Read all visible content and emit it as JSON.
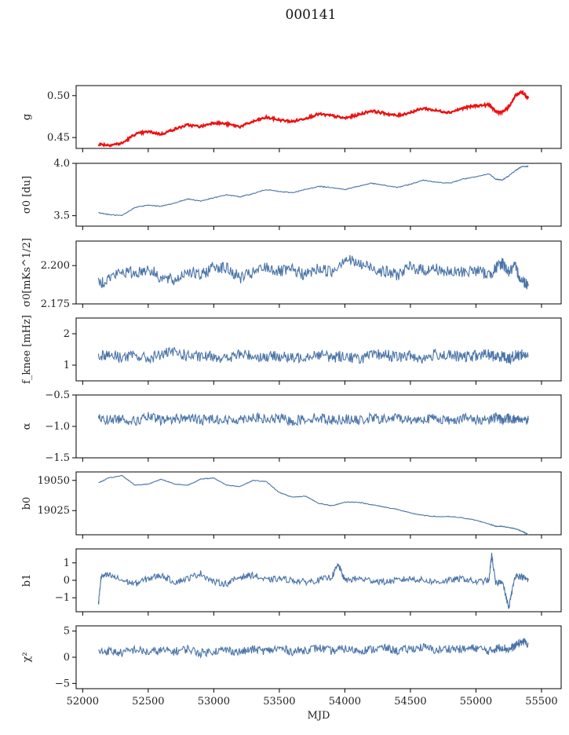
{
  "figure": {
    "title": "000141"
  },
  "chart_data": [
    {
      "type": "line",
      "ylabel": "g",
      "yticks": [
        0.45,
        0.5
      ],
      "ytick_labels": [
        "0.45",
        "0.50"
      ],
      "ylim": [
        0.437,
        0.512
      ],
      "xlim": [
        51950,
        55650
      ],
      "grid": false,
      "series": [
        {
          "color": "#4a74a8",
          "x": [
            52120,
            52200,
            52300,
            52400,
            52500,
            52600,
            52700,
            52800,
            52900,
            53000,
            53100,
            53200,
            53300,
            53400,
            53500,
            53600,
            53700,
            53800,
            53900,
            54000,
            54100,
            54200,
            54300,
            54400,
            54500,
            54600,
            54700,
            54800,
            54900,
            55000,
            55100,
            55150,
            55200,
            55250,
            55300,
            55350,
            55400
          ],
          "y": [
            0.442,
            0.441,
            0.443,
            0.454,
            0.457,
            0.454,
            0.46,
            0.465,
            0.463,
            0.468,
            0.466,
            0.463,
            0.469,
            0.474,
            0.471,
            0.469,
            0.473,
            0.478,
            0.476,
            0.473,
            0.477,
            0.482,
            0.479,
            0.476,
            0.48,
            0.485,
            0.482,
            0.48,
            0.485,
            0.488,
            0.489,
            0.481,
            0.48,
            0.486,
            0.5,
            0.504,
            0.497
          ]
        },
        {
          "color": "#ee1111",
          "x": [
            52120,
            52200,
            52300,
            52400,
            52500,
            52600,
            52700,
            52800,
            52900,
            53000,
            53100,
            53200,
            53300,
            53400,
            53500,
            53600,
            53700,
            53800,
            53900,
            54000,
            54100,
            54200,
            54300,
            54400,
            54500,
            54600,
            54700,
            54800,
            54900,
            55000,
            55100,
            55150,
            55200,
            55250,
            55300,
            55350,
            55400
          ],
          "y": [
            0.442,
            0.441,
            0.443,
            0.454,
            0.457,
            0.454,
            0.46,
            0.465,
            0.463,
            0.468,
            0.466,
            0.463,
            0.469,
            0.474,
            0.471,
            0.469,
            0.473,
            0.478,
            0.476,
            0.473,
            0.477,
            0.482,
            0.479,
            0.476,
            0.48,
            0.485,
            0.482,
            0.48,
            0.485,
            0.488,
            0.489,
            0.481,
            0.48,
            0.486,
            0.5,
            0.504,
            0.497
          ]
        }
      ]
    },
    {
      "type": "line",
      "ylabel": "σ0 [du]",
      "yticks": [
        3.5,
        4.0
      ],
      "ytick_labels": [
        "3.5",
        "4.0"
      ],
      "ylim": [
        3.4,
        4.0
      ],
      "xlim": [
        51950,
        55650
      ],
      "grid": false,
      "series": [
        {
          "color": "#4a74a8",
          "x": [
            52120,
            52200,
            52300,
            52400,
            52500,
            52600,
            52700,
            52800,
            52900,
            53000,
            53100,
            53200,
            53300,
            53400,
            53500,
            53600,
            53700,
            53800,
            53900,
            54000,
            54100,
            54200,
            54300,
            54400,
            54500,
            54600,
            54700,
            54800,
            54900,
            55000,
            55100,
            55150,
            55200,
            55250,
            55300,
            55350,
            55400
          ],
          "y": [
            3.53,
            3.51,
            3.5,
            3.58,
            3.6,
            3.59,
            3.62,
            3.66,
            3.64,
            3.67,
            3.7,
            3.68,
            3.71,
            3.75,
            3.73,
            3.72,
            3.75,
            3.78,
            3.77,
            3.75,
            3.78,
            3.81,
            3.79,
            3.77,
            3.8,
            3.84,
            3.82,
            3.81,
            3.85,
            3.87,
            3.9,
            3.85,
            3.84,
            3.88,
            3.93,
            3.97,
            3.97
          ]
        }
      ]
    },
    {
      "type": "line",
      "ylabel": "σ0[mKs^1/2]",
      "yticks": [
        2.175,
        2.2
      ],
      "ytick_labels": [
        "2.175",
        "2.200"
      ],
      "ylim": [
        2.175,
        2.216
      ],
      "xlim": [
        51950,
        55650
      ],
      "grid": false,
      "series": [
        {
          "color": "#4a74a8",
          "x": [
            52120,
            52200,
            52300,
            52400,
            52500,
            52600,
            52700,
            52800,
            52900,
            53000,
            53100,
            53200,
            53300,
            53400,
            53500,
            53600,
            53700,
            53800,
            53900,
            54000,
            54100,
            54200,
            54300,
            54400,
            54500,
            54600,
            54700,
            54800,
            54900,
            55000,
            55100,
            55150,
            55200,
            55250,
            55300,
            55350,
            55400
          ],
          "y": [
            2.188,
            2.192,
            2.196,
            2.195,
            2.198,
            2.192,
            2.19,
            2.197,
            2.193,
            2.2,
            2.198,
            2.192,
            2.195,
            2.199,
            2.196,
            2.197,
            2.194,
            2.198,
            2.196,
            2.205,
            2.201,
            2.199,
            2.196,
            2.194,
            2.199,
            2.197,
            2.198,
            2.195,
            2.196,
            2.197,
            2.194,
            2.198,
            2.202,
            2.196,
            2.199,
            2.19,
            2.188
          ]
        }
      ]
    },
    {
      "type": "line",
      "ylabel": "f_knee [mHz]",
      "yticks": [
        1,
        2
      ],
      "ytick_labels": [
        "1",
        "2"
      ],
      "ylim": [
        0.5,
        2.5
      ],
      "xlim": [
        51950,
        55650
      ],
      "grid": false,
      "series": [
        {
          "color": "#4a74a8",
          "x": [
            52120,
            52200,
            52300,
            52400,
            52500,
            52600,
            52700,
            52800,
            52900,
            53000,
            53100,
            53200,
            53300,
            53400,
            53500,
            53600,
            53700,
            53800,
            53900,
            54000,
            54100,
            54200,
            54300,
            54400,
            54500,
            54600,
            54700,
            54800,
            54900,
            55000,
            55100,
            55150,
            55200,
            55250,
            55300,
            55350,
            55400
          ],
          "y": [
            1.3,
            1.35,
            1.25,
            1.3,
            1.2,
            1.35,
            1.4,
            1.3,
            1.25,
            1.3,
            1.2,
            1.35,
            1.3,
            1.25,
            1.3,
            1.2,
            1.3,
            1.35,
            1.25,
            1.3,
            1.2,
            1.3,
            1.35,
            1.25,
            1.3,
            1.2,
            1.35,
            1.3,
            1.25,
            1.3,
            1.35,
            1.25,
            1.3,
            1.2,
            1.3,
            1.35,
            1.3
          ]
        }
      ]
    },
    {
      "type": "line",
      "ylabel": "α",
      "yticks": [
        -1.5,
        -1.0,
        -0.5
      ],
      "ytick_labels": [
        "−1.5",
        "−1.0",
        "−0.5"
      ],
      "ylim": [
        -1.5,
        -0.5
      ],
      "xlim": [
        51950,
        55650
      ],
      "grid": false,
      "series": [
        {
          "color": "#4a74a8",
          "x": [
            52120,
            52200,
            52300,
            52400,
            52500,
            52600,
            52700,
            52800,
            52900,
            53000,
            53100,
            53200,
            53300,
            53400,
            53500,
            53600,
            53700,
            53800,
            53900,
            54000,
            54100,
            54200,
            54300,
            54400,
            54500,
            54600,
            54700,
            54800,
            54900,
            55000,
            55100,
            55150,
            55200,
            55250,
            55300,
            55350,
            55400
          ],
          "y": [
            -0.88,
            -0.9,
            -0.87,
            -0.92,
            -0.85,
            -0.9,
            -0.88,
            -0.86,
            -0.9,
            -0.87,
            -0.91,
            -0.88,
            -0.85,
            -0.9,
            -0.87,
            -0.92,
            -0.88,
            -0.86,
            -0.9,
            -0.88,
            -0.91,
            -0.87,
            -0.89,
            -0.86,
            -0.9,
            -0.88,
            -0.87,
            -0.91,
            -0.86,
            -0.9,
            -0.88,
            -0.85,
            -0.9,
            -0.87,
            -0.89,
            -0.88,
            -0.9
          ]
        }
      ]
    },
    {
      "type": "line",
      "ylabel": "b0",
      "yticks": [
        19025,
        19050
      ],
      "ytick_labels": [
        "19025",
        "19050"
      ],
      "ylim": [
        19005,
        19057
      ],
      "xlim": [
        51950,
        55650
      ],
      "grid": false,
      "series": [
        {
          "color": "#4a74a8",
          "x": [
            52120,
            52200,
            52300,
            52400,
            52500,
            52600,
            52700,
            52800,
            52900,
            53000,
            53100,
            53200,
            53300,
            53400,
            53500,
            53600,
            53700,
            53800,
            53900,
            54000,
            54100,
            54200,
            54300,
            54400,
            54500,
            54600,
            54700,
            54800,
            54900,
            55000,
            55100,
            55150,
            55200,
            55250,
            55300,
            55350,
            55400
          ],
          "y": [
            19048,
            19052,
            19054,
            19046,
            19047,
            19051,
            19047,
            19046,
            19051,
            19052,
            19046,
            19045,
            19050,
            19049,
            19040,
            19036,
            19037,
            19031,
            19029,
            19032,
            19032,
            19030,
            19028,
            19026,
            19023,
            19021,
            19020,
            19020,
            19019,
            19017,
            19014,
            19012,
            19012,
            19011,
            19010,
            19008,
            19005
          ]
        }
      ]
    },
    {
      "type": "line",
      "ylabel": "b1",
      "yticks": [
        -1,
        0,
        1
      ],
      "ytick_labels": [
        "−1",
        "0",
        "1"
      ],
      "ylim": [
        -1.8,
        1.8
      ],
      "xlim": [
        51950,
        55650
      ],
      "grid": false,
      "series": [
        {
          "color": "#4a74a8",
          "x": [
            52120,
            52140,
            52200,
            52300,
            52400,
            52500,
            52600,
            52700,
            52800,
            52900,
            53000,
            53100,
            53200,
            53300,
            53400,
            53500,
            53600,
            53700,
            53800,
            53900,
            53950,
            54000,
            54100,
            54200,
            54300,
            54400,
            54500,
            54600,
            54700,
            54800,
            54900,
            55000,
            55100,
            55120,
            55150,
            55200,
            55250,
            55300,
            55350,
            55400
          ],
          "y": [
            -1.4,
            0.2,
            0.3,
            0.0,
            -0.2,
            0.1,
            0.3,
            -0.1,
            0.1,
            0.4,
            -0.1,
            -0.2,
            0.2,
            0.3,
            0.0,
            0.1,
            0.0,
            -0.1,
            0.0,
            0.2,
            0.9,
            0.0,
            0.1,
            0.0,
            -0.1,
            0.0,
            0.1,
            0.0,
            -0.1,
            0.0,
            0.1,
            -0.1,
            0.0,
            1.5,
            -0.2,
            0.0,
            -1.6,
            0.3,
            0.2,
            0.0
          ]
        }
      ]
    },
    {
      "type": "line",
      "ylabel": "χ²",
      "yticks": [
        -5,
        0,
        5
      ],
      "ytick_labels": [
        "−5",
        "0",
        "5"
      ],
      "ylim": [
        -6,
        6
      ],
      "xlim": [
        51950,
        55650
      ],
      "grid": false,
      "xticks": [
        52000,
        52500,
        53000,
        53500,
        54000,
        54500,
        55000,
        55500
      ],
      "xtick_labels": [
        "52000",
        "52500",
        "53000",
        "53500",
        "54000",
        "54500",
        "55000",
        "55500"
      ],
      "xlabel": "MJD",
      "series": [
        {
          "color": "#4a74a8",
          "x": [
            52120,
            52200,
            52300,
            52400,
            52500,
            52600,
            52700,
            52800,
            52900,
            53000,
            53100,
            53200,
            53300,
            53400,
            53500,
            53600,
            53700,
            53800,
            53900,
            54000,
            54100,
            54200,
            54300,
            54400,
            54500,
            54600,
            54700,
            54800,
            54900,
            55000,
            55100,
            55150,
            55200,
            55250,
            55300,
            55350,
            55400
          ],
          "y": [
            1.0,
            1.2,
            0.8,
            1.5,
            0.9,
            1.3,
            1.1,
            1.6,
            0.8,
            1.2,
            1.4,
            1.0,
            1.5,
            1.2,
            1.7,
            1.1,
            1.4,
            1.8,
            1.2,
            1.6,
            1.3,
            1.5,
            1.8,
            1.2,
            1.6,
            1.9,
            1.3,
            1.7,
            1.5,
            1.8,
            1.2,
            1.6,
            2.0,
            1.4,
            2.2,
            3.0,
            2.6
          ]
        }
      ]
    }
  ]
}
